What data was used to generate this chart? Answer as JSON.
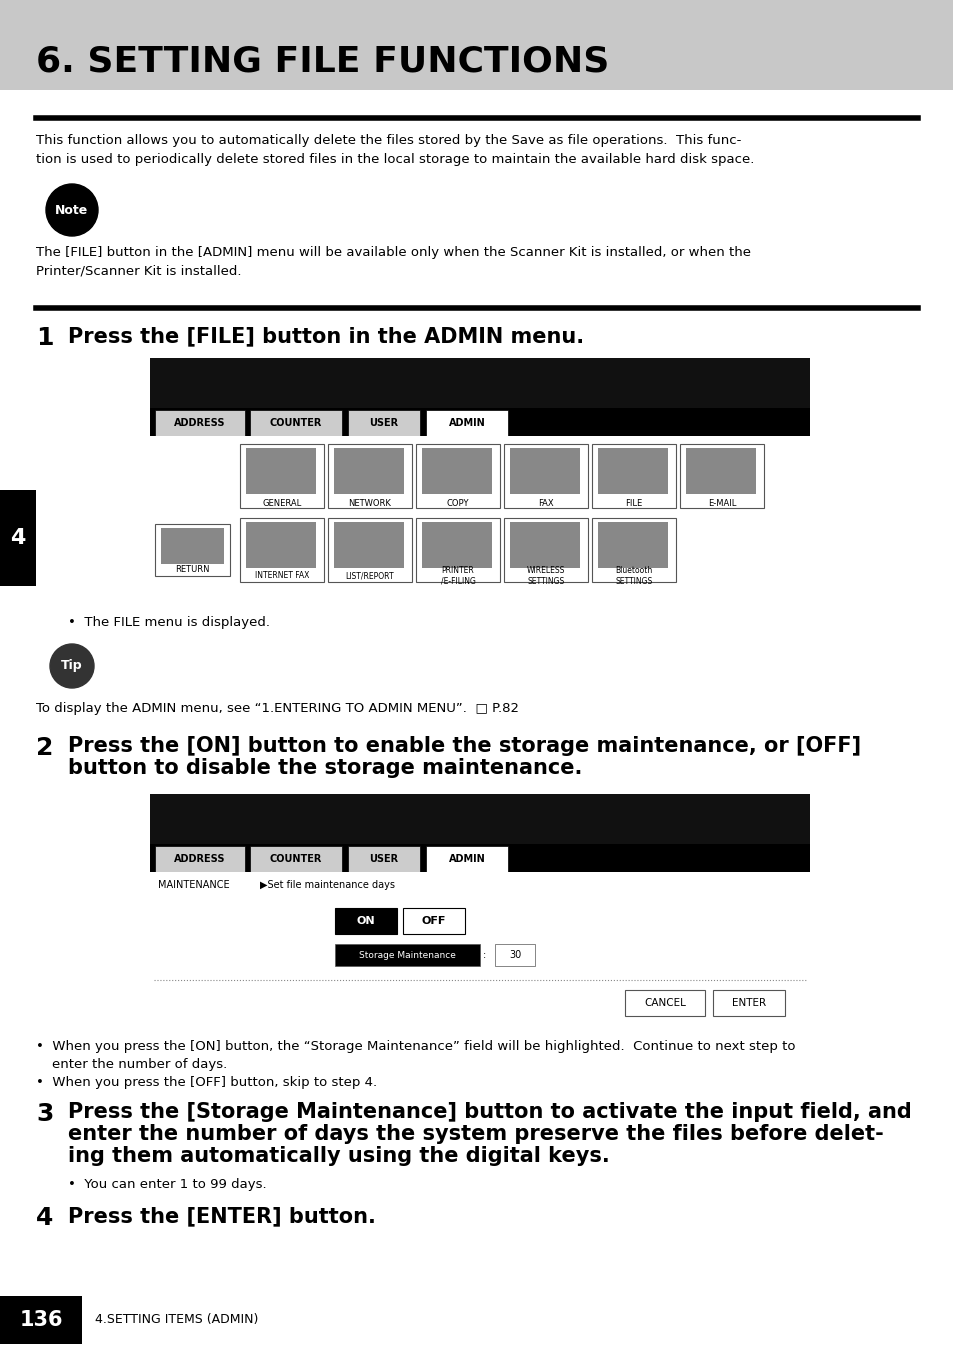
{
  "page_bg": "#ffffff",
  "header_bg": "#c8c8c8",
  "header_text": "6. SETTING FILE FUNCTIONS",
  "body_text_color": "#000000",
  "intro_line1": "This function allows you to automatically delete the files stored by the Save as file operations.  This func-",
  "intro_line2": "tion is used to periodically delete stored files in the local storage to maintain the available hard disk space.",
  "note_label": "Note",
  "note_line1": "The [FILE] button in the [ADMIN] menu will be available only when the Scanner Kit is installed, or when the",
  "note_line2": "Printer/Scanner Kit is installed.",
  "step1_text": "Press the [FILE] button in the ADMIN menu.",
  "step1_bullet": "The FILE menu is displayed.",
  "tip_label": "Tip",
  "tip_text": "To display the ADMIN menu, see “1.ENTERING TO ADMIN MENU”.  □ P.82",
  "step2_line1": "Press the [ON] button to enable the storage maintenance, or [OFF]",
  "step2_line2": "button to disable the storage maintenance.",
  "step2_b1_l1": "When you press the [ON] button, the “Storage Maintenance” field will be highlighted.  Continue to next step to",
  "step2_b1_l2": "enter the number of days.",
  "step2_b2": "When you press the [OFF] button, skip to step 4.",
  "step3_line1": "Press the [Storage Maintenance] button to activate the input field, and",
  "step3_line2": "enter the number of days the system preserve the files before delet-",
  "step3_line3": "ing them automatically using the digital keys.",
  "step3_bullet": "You can enter 1 to 99 days.",
  "step4_text": "Press the [ENTER] button.",
  "footer_page": "136",
  "footer_label": "4.SETTING ITEMS (ADMIN)",
  "tab_labels": [
    "ADDRESS",
    "COUNTER",
    "USER",
    "ADMIN"
  ],
  "icon_row1": [
    "GENERAL",
    "NETWORK",
    "COPY",
    "FAX",
    "FILE",
    "E-MAIL"
  ],
  "icon_row2_labels": [
    "RETURN",
    "INTERNET FAX",
    "LIST/REPORT",
    "PRINTER\n/E-FILING",
    "WIRELESS\nSETTINGS",
    "Bluetooth\nSETTINGS"
  ],
  "screen_bg": "#000000",
  "screen_tab_inactive": "#cccccc",
  "screen_tab_active": "#ffffff"
}
